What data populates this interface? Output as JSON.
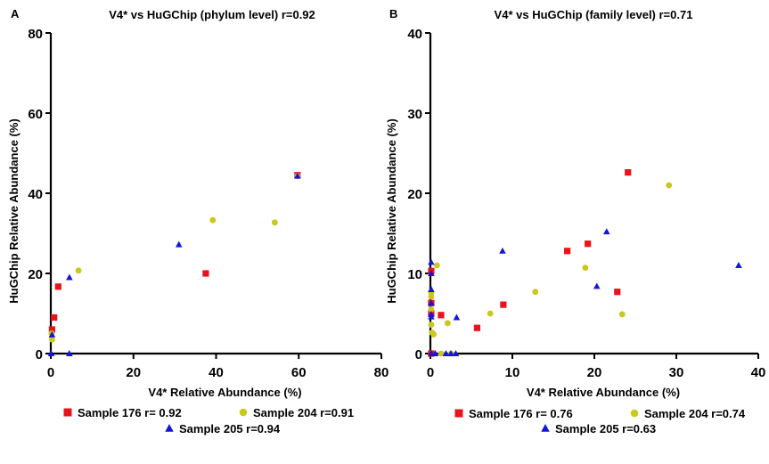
{
  "chart_data": [
    {
      "type": "scatter",
      "panel_letter": "A",
      "title": "V4* vs HuGChip (phylum level) r=0.92",
      "xlabel": "V4* Relative Abundance (%)",
      "ylabel": "HuGChip Relative Abundance (%)",
      "xlim": [
        0,
        80
      ],
      "ylim": [
        0,
        80
      ],
      "xticks": [
        "0",
        "20",
        "40",
        "60",
        "80"
      ],
      "yticks": [
        "0",
        "20",
        "40",
        "60",
        "80"
      ],
      "grid": false,
      "legend_position": "bottom",
      "series": [
        {
          "name": "Sample 176 r= 0.92",
          "marker": "square",
          "color": "#e8141c",
          "points": [
            [
              0.3,
              6.0
            ],
            [
              0.8,
              9.0
            ],
            [
              1.8,
              16.7
            ],
            [
              37.5,
              20.0
            ],
            [
              59.7,
              44.5
            ]
          ]
        },
        {
          "name": "Sample 204 r=0.91",
          "marker": "circle",
          "color": "#c8c81e",
          "points": [
            [
              0.2,
              5.0
            ],
            [
              0.3,
              3.5
            ],
            [
              6.7,
              20.7
            ],
            [
              39.2,
              33.3
            ],
            [
              54.2,
              32.7
            ],
            [
              59.7,
              44.3
            ]
          ]
        },
        {
          "name": "Sample 205 r=0.94",
          "marker": "triangle",
          "color": "#1414dc",
          "points": [
            [
              0.1,
              0.0
            ],
            [
              0.3,
              4.7
            ],
            [
              4.5,
              0.0
            ],
            [
              4.5,
              19.0
            ],
            [
              31.0,
              27.2
            ],
            [
              59.7,
              44.3
            ]
          ]
        }
      ]
    },
    {
      "type": "scatter",
      "panel_letter": "B",
      "title": "V4* vs HuGChip (family level) r=0.71",
      "xlabel": "V4* Relative Abundance (%)",
      "ylabel": "HuGChip Relative Abundance (%)",
      "xlim": [
        0,
        40
      ],
      "ylim": [
        0,
        40
      ],
      "xticks": [
        "0",
        "10",
        "20",
        "30",
        "40"
      ],
      "yticks": [
        "0",
        "10",
        "20",
        "30",
        "40"
      ],
      "grid": false,
      "legend_position": "bottom",
      "series": [
        {
          "name": "Sample 176 r= 0.76",
          "marker": "square",
          "color": "#e8141c",
          "points": [
            [
              0.1,
              10.3
            ],
            [
              0.1,
              6.3
            ],
            [
              0.1,
              5.0
            ],
            [
              0.1,
              0.0
            ],
            [
              1.3,
              4.8
            ],
            [
              5.7,
              3.2
            ],
            [
              8.9,
              6.1
            ],
            [
              16.7,
              12.8
            ],
            [
              19.2,
              13.7
            ],
            [
              22.8,
              7.7
            ],
            [
              24.1,
              22.6
            ]
          ]
        },
        {
          "name": "Sample 204 r=0.74",
          "marker": "circle",
          "color": "#c8c81e",
          "points": [
            [
              0.1,
              7.6
            ],
            [
              0.1,
              7.1
            ],
            [
              0.1,
              5.5
            ],
            [
              0.1,
              3.6
            ],
            [
              0.2,
              2.6
            ],
            [
              0.4,
              2.4
            ],
            [
              0.8,
              11.0
            ],
            [
              1.3,
              0.0
            ],
            [
              2.1,
              3.8
            ],
            [
              2.5,
              0.0
            ],
            [
              7.3,
              5.0
            ],
            [
              12.8,
              7.7
            ],
            [
              18.9,
              10.7
            ],
            [
              23.4,
              4.9
            ],
            [
              29.1,
              21.0
            ]
          ]
        },
        {
          "name": "Sample 205 r=0.63",
          "marker": "triangle",
          "color": "#1414dc",
          "points": [
            [
              0.1,
              11.4
            ],
            [
              0.1,
              10.0
            ],
            [
              0.1,
              8.0
            ],
            [
              0.1,
              6.3
            ],
            [
              0.1,
              4.9
            ],
            [
              0.1,
              4.6
            ],
            [
              0.1,
              0.0
            ],
            [
              0.6,
              0.0
            ],
            [
              1.9,
              0.0
            ],
            [
              2.5,
              0.0
            ],
            [
              3.1,
              0.0
            ],
            [
              3.2,
              4.5
            ],
            [
              8.8,
              12.8
            ],
            [
              20.3,
              8.4
            ],
            [
              21.5,
              15.2
            ],
            [
              37.6,
              11.0
            ]
          ]
        }
      ]
    }
  ]
}
